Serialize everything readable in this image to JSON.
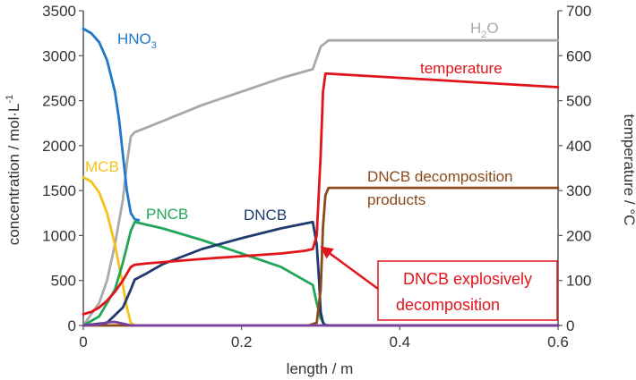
{
  "chart_data": {
    "type": "line",
    "x_axis": {
      "label": "length / m",
      "range": [
        0,
        0.6
      ],
      "ticks": [
        "0",
        "0.2",
        "0.4",
        "0.6"
      ],
      "tick_values": [
        0,
        0.2,
        0.4,
        0.6
      ]
    },
    "y_axis_left": {
      "label": "concentration / mol·L",
      "label_sup": "-1",
      "range": [
        0,
        3500
      ],
      "ticks": [
        "0",
        "500",
        "1000",
        "1500",
        "2000",
        "2500",
        "3000",
        "3500"
      ],
      "tick_values": [
        0,
        500,
        1000,
        1500,
        2000,
        2500,
        3000,
        3500
      ]
    },
    "y_axis_right": {
      "label": "temperature / °C",
      "range": [
        0,
        700
      ],
      "ticks": [
        "0",
        "100",
        "200",
        "300",
        "400",
        "500",
        "600",
        "700"
      ],
      "tick_values": [
        0,
        100,
        200,
        300,
        400,
        500,
        600,
        700
      ]
    },
    "grid": false,
    "series": [
      {
        "name": "H2O",
        "label_main": "H",
        "label_sub": "2",
        "label_tail": "O",
        "color": "#a9a9a9",
        "axis": "left",
        "x": [
          0,
          0.02,
          0.03,
          0.04,
          0.05,
          0.055,
          0.06,
          0.065,
          0.08,
          0.15,
          0.25,
          0.29,
          0.3,
          0.31,
          0.32,
          0.6
        ],
        "y": [
          0,
          250,
          500,
          900,
          1400,
          1800,
          2100,
          2150,
          2200,
          2450,
          2750,
          2850,
          3100,
          3170,
          3170,
          3170
        ]
      },
      {
        "name": "HNO3",
        "label_main": "HNO",
        "label_sub": "3",
        "label_tail": "",
        "color": "#1f78c8",
        "axis": "left",
        "x": [
          0,
          0.01,
          0.02,
          0.03,
          0.04,
          0.045,
          0.05,
          0.055,
          0.06,
          0.065,
          0.07
        ],
        "y": [
          3300,
          3250,
          3150,
          2950,
          2600,
          2300,
          1900,
          1500,
          1250,
          1180,
          1170
        ]
      },
      {
        "name": "MCB",
        "label_main": "MCB",
        "label_sub": "",
        "label_tail": "",
        "color": "#f5c21b",
        "axis": "left",
        "x": [
          0,
          0.01,
          0.02,
          0.03,
          0.04,
          0.05,
          0.055,
          0.06,
          0.065
        ],
        "y": [
          1650,
          1600,
          1480,
          1250,
          900,
          450,
          200,
          30,
          0
        ]
      },
      {
        "name": "PNCB",
        "label_main": "PNCB",
        "label_sub": "",
        "label_tail": "",
        "color": "#22a65a",
        "axis": "left",
        "x": [
          0,
          0.02,
          0.04,
          0.05,
          0.06,
          0.065,
          0.1,
          0.15,
          0.2,
          0.25,
          0.28,
          0.29,
          0.295,
          0.3,
          0.305,
          0.31,
          0.6
        ],
        "y": [
          0,
          100,
          400,
          700,
          1050,
          1150,
          1080,
          950,
          800,
          650,
          500,
          450,
          250,
          80,
          10,
          0,
          0
        ]
      },
      {
        "name": "DNCB",
        "label_main": "DNCB",
        "label_sub": "",
        "label_tail": "",
        "color": "#1e3a6e",
        "axis": "left",
        "x": [
          0,
          0.03,
          0.05,
          0.06,
          0.065,
          0.08,
          0.1,
          0.15,
          0.2,
          0.25,
          0.29,
          0.295,
          0.298,
          0.3,
          0.303,
          0.306,
          0.6
        ],
        "y": [
          0,
          30,
          200,
          400,
          510,
          580,
          680,
          850,
          970,
          1080,
          1150,
          900,
          500,
          150,
          30,
          0,
          0
        ]
      },
      {
        "name": "DNCB decomposition products",
        "label_main": "DNCB decomposition",
        "label_line2": "products",
        "label_sub": "",
        "label_tail": "",
        "color": "#8b4a1b",
        "axis": "left",
        "x": [
          0,
          0.285,
          0.295,
          0.3,
          0.303,
          0.306,
          0.31,
          0.6
        ],
        "y": [
          0,
          0,
          30,
          400,
          1100,
          1450,
          1530,
          1530
        ]
      },
      {
        "name": "temperature",
        "label_main": "temperature",
        "label_sub": "",
        "label_tail": "",
        "color": "#e2141b",
        "axis": "right",
        "x": [
          0,
          0.01,
          0.02,
          0.03,
          0.04,
          0.05,
          0.06,
          0.065,
          0.08,
          0.15,
          0.25,
          0.28,
          0.29,
          0.295,
          0.3,
          0.303,
          0.306,
          0.31,
          0.6
        ],
        "y": [
          25,
          30,
          40,
          55,
          75,
          100,
          130,
          135,
          138,
          148,
          160,
          166,
          170,
          200,
          380,
          520,
          560,
          560,
          530
        ]
      },
      {
        "name": "",
        "label_main": "",
        "label_sub": "",
        "label_tail": "",
        "color": "#7b3fa0",
        "axis": "left",
        "x": [
          0,
          0.02,
          0.03,
          0.04,
          0.05,
          0.06,
          0.6
        ],
        "y": [
          0,
          10,
          35,
          40,
          20,
          0,
          0
        ]
      }
    ],
    "annotation": {
      "text_lines": [
        "DNCB explosively",
        "decomposition"
      ],
      "color": "#e2141b",
      "arrow_target": {
        "x": 0.297,
        "y": 880
      }
    }
  }
}
